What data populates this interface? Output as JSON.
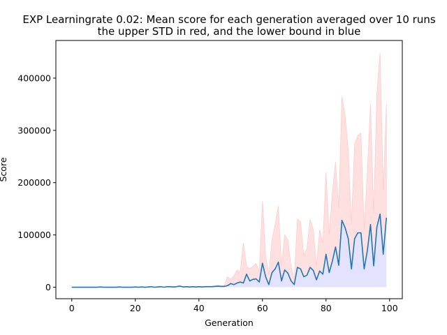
{
  "chart_data": {
    "type": "line",
    "title_line1": "EXP Learningrate 0.02: Mean score for each generation averaged over 10 runs",
    "title_line2": "the upper STD in red, and the lower bound in blue",
    "xlabel": "Generation",
    "ylabel": "Score",
    "xlim": [
      -5,
      104
    ],
    "ylim": [
      -22000,
      472000
    ],
    "xticks": [
      0,
      20,
      40,
      60,
      80,
      100
    ],
    "yticks": [
      0,
      100000,
      200000,
      300000,
      400000
    ],
    "grid": false,
    "colors": {
      "mean": "#1f77b4",
      "upper": "#ffcccc",
      "lower": "#ccccff"
    },
    "mean": [
      0,
      0,
      0,
      0,
      0,
      0,
      0,
      0,
      0,
      500,
      0,
      0,
      0,
      0,
      0,
      500,
      0,
      0,
      0,
      0,
      500,
      0,
      500,
      0,
      500,
      1000,
      0,
      500,
      1000,
      0,
      1000,
      1000,
      500,
      1000,
      2000,
      500,
      1000,
      500,
      1000,
      500,
      1000,
      500,
      1000,
      1000,
      1000,
      1500,
      2000,
      1500,
      1500,
      3000,
      7000,
      5000,
      8000,
      10000,
      8000,
      25000,
      12000,
      15000,
      16000,
      10000,
      46000,
      20000,
      5000,
      28000,
      35000,
      48000,
      12000,
      33000,
      27000,
      12000,
      5000,
      38000,
      35000,
      20000,
      23000,
      38000,
      32000,
      14000,
      31000,
      25000,
      63000,
      28000,
      50000,
      77000,
      42000,
      128000,
      114000,
      93000,
      35000,
      93000,
      104000,
      104000,
      35000,
      70000,
      120000,
      41000,
      115000,
      140000,
      63000,
      133000
    ],
    "upper": [
      0,
      0,
      0,
      0,
      0,
      0,
      0,
      0,
      0,
      1000,
      0,
      0,
      0,
      0,
      0,
      1000,
      0,
      0,
      0,
      0,
      1000,
      0,
      1000,
      0,
      1000,
      2000,
      0,
      1000,
      2000,
      0,
      2000,
      2000,
      1000,
      2000,
      4000,
      1000,
      2000,
      1000,
      2000,
      1000,
      2000,
      1000,
      2000,
      2000,
      2000,
      3000,
      4000,
      3000,
      3000,
      20000,
      15000,
      22000,
      33000,
      30000,
      85000,
      40000,
      35000,
      40000,
      45000,
      30000,
      165000,
      60000,
      25000,
      90000,
      120000,
      155000,
      40000,
      100000,
      90000,
      40000,
      15000,
      130000,
      125000,
      60000,
      75000,
      130000,
      110000,
      40000,
      110000,
      85000,
      220000,
      100000,
      180000,
      240000,
      150000,
      365000,
      330000,
      260000,
      120000,
      275000,
      290000,
      295000,
      110000,
      220000,
      350000,
      140000,
      370000,
      448000,
      185000,
      350000
    ]
  }
}
